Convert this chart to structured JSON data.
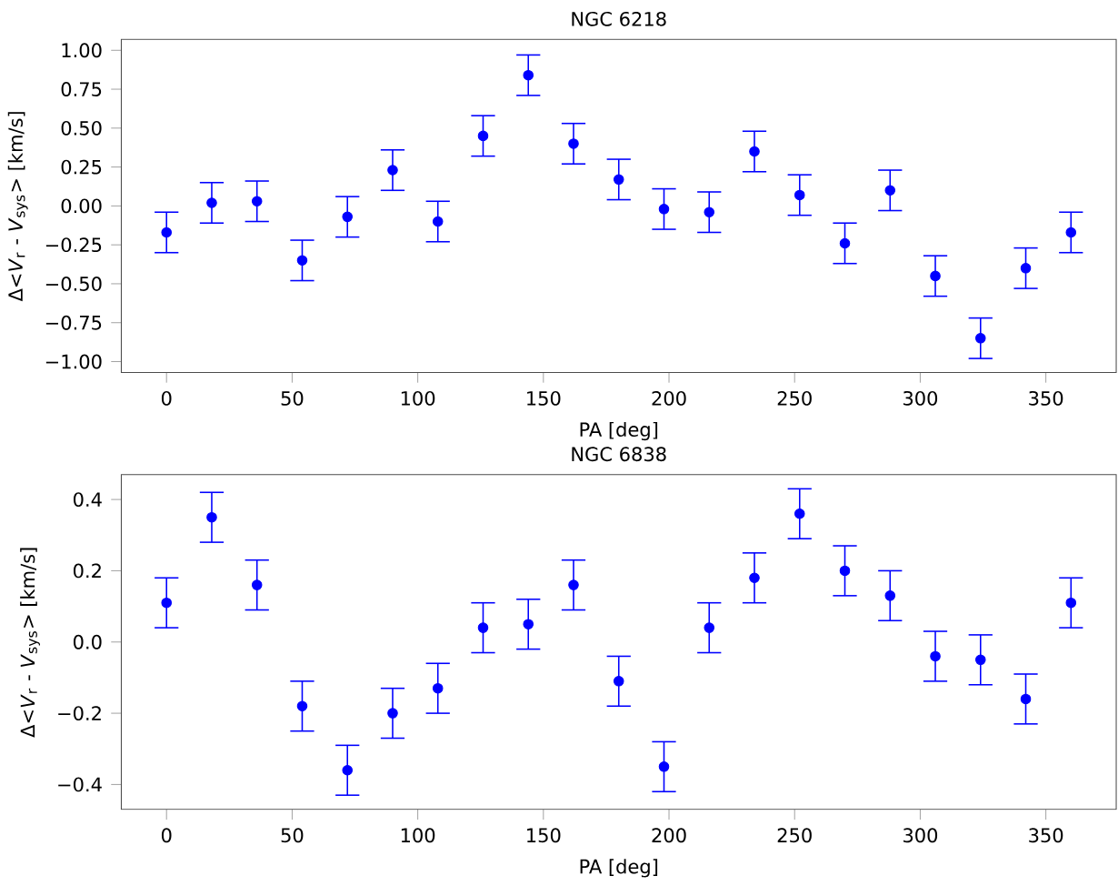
{
  "chart_data": [
    {
      "type": "scatter",
      "title": "NGC 6218",
      "xlabel": "PA [deg]",
      "ylabel": "Δ<*V*$_{r}$ - *V*$_{sys}$> [km/s]",
      "grid": false,
      "xlim": [
        -18,
        378
      ],
      "ylim": [
        -1.07,
        1.07
      ],
      "xticks": [
        0,
        50,
        100,
        150,
        200,
        250,
        300,
        350
      ],
      "yticks": [
        {
          "value": -1,
          "label": "−1.00"
        },
        {
          "value": -0.75,
          "label": "−0.75"
        },
        {
          "value": -0.5,
          "label": "−0.50"
        },
        {
          "value": -0.25,
          "label": "−0.25"
        },
        {
          "value": 0,
          "label": "0.00"
        },
        {
          "value": 0.25,
          "label": "0.25"
        },
        {
          "value": 0.5,
          "label": "0.50"
        },
        {
          "value": 0.75,
          "label": "0.75"
        },
        {
          "value": 1,
          "label": "1.00"
        }
      ],
      "series": [
        {
          "color": "#0000ff",
          "x": [
            0,
            18,
            36,
            54,
            72,
            90,
            108,
            126,
            144,
            162,
            180,
            198,
            216,
            234,
            252,
            270,
            288,
            306,
            324,
            342,
            360
          ],
          "values": [
            -0.17,
            0.02,
            0.03,
            -0.35,
            -0.07,
            0.23,
            -0.1,
            0.45,
            0.84,
            0.4,
            0.17,
            -0.02,
            -0.04,
            0.35,
            0.07,
            -0.24,
            0.1,
            -0.45,
            -0.85,
            -0.4,
            -0.17
          ],
          "errors": [
            0.13,
            0.13,
            0.13,
            0.13,
            0.13,
            0.13,
            0.13,
            0.13,
            0.13,
            0.13,
            0.13,
            0.13,
            0.13,
            0.13,
            0.13,
            0.13,
            0.13,
            0.13,
            0.13,
            0.13,
            0.13
          ]
        }
      ]
    },
    {
      "type": "scatter",
      "title": "NGC 6838",
      "xlabel": "PA [deg]",
      "ylabel": "Δ<*V*$_{r}$ - *V*$_{sys}$> [km/s]",
      "grid": false,
      "xlim": [
        -18,
        378
      ],
      "ylim": [
        -0.47,
        0.47
      ],
      "xticks": [
        0,
        50,
        100,
        150,
        200,
        250,
        300,
        350
      ],
      "yticks": [
        {
          "value": -0.4,
          "label": "−0.4"
        },
        {
          "value": -0.2,
          "label": "−0.2"
        },
        {
          "value": 0,
          "label": "0.0"
        },
        0.2,
        0.4
      ],
      "series": [
        {
          "color": "#0000ff",
          "x": [
            0,
            18,
            36,
            54,
            72,
            90,
            108,
            126,
            144,
            162,
            180,
            198,
            216,
            234,
            252,
            270,
            288,
            306,
            324,
            342,
            360
          ],
          "values": [
            0.11,
            0.35,
            0.16,
            -0.18,
            -0.36,
            -0.2,
            -0.13,
            0.04,
            0.05,
            0.16,
            -0.11,
            -0.35,
            0.04,
            0.18,
            0.36,
            0.2,
            0.13,
            -0.04,
            -0.05,
            -0.16,
            0.11
          ],
          "errors": [
            0.07,
            0.07,
            0.07,
            0.07,
            0.07,
            0.07,
            0.07,
            0.07,
            0.07,
            0.07,
            0.07,
            0.07,
            0.07,
            0.07,
            0.07,
            0.07,
            0.07,
            0.07,
            0.07,
            0.07,
            0.07
          ]
        }
      ]
    }
  ]
}
